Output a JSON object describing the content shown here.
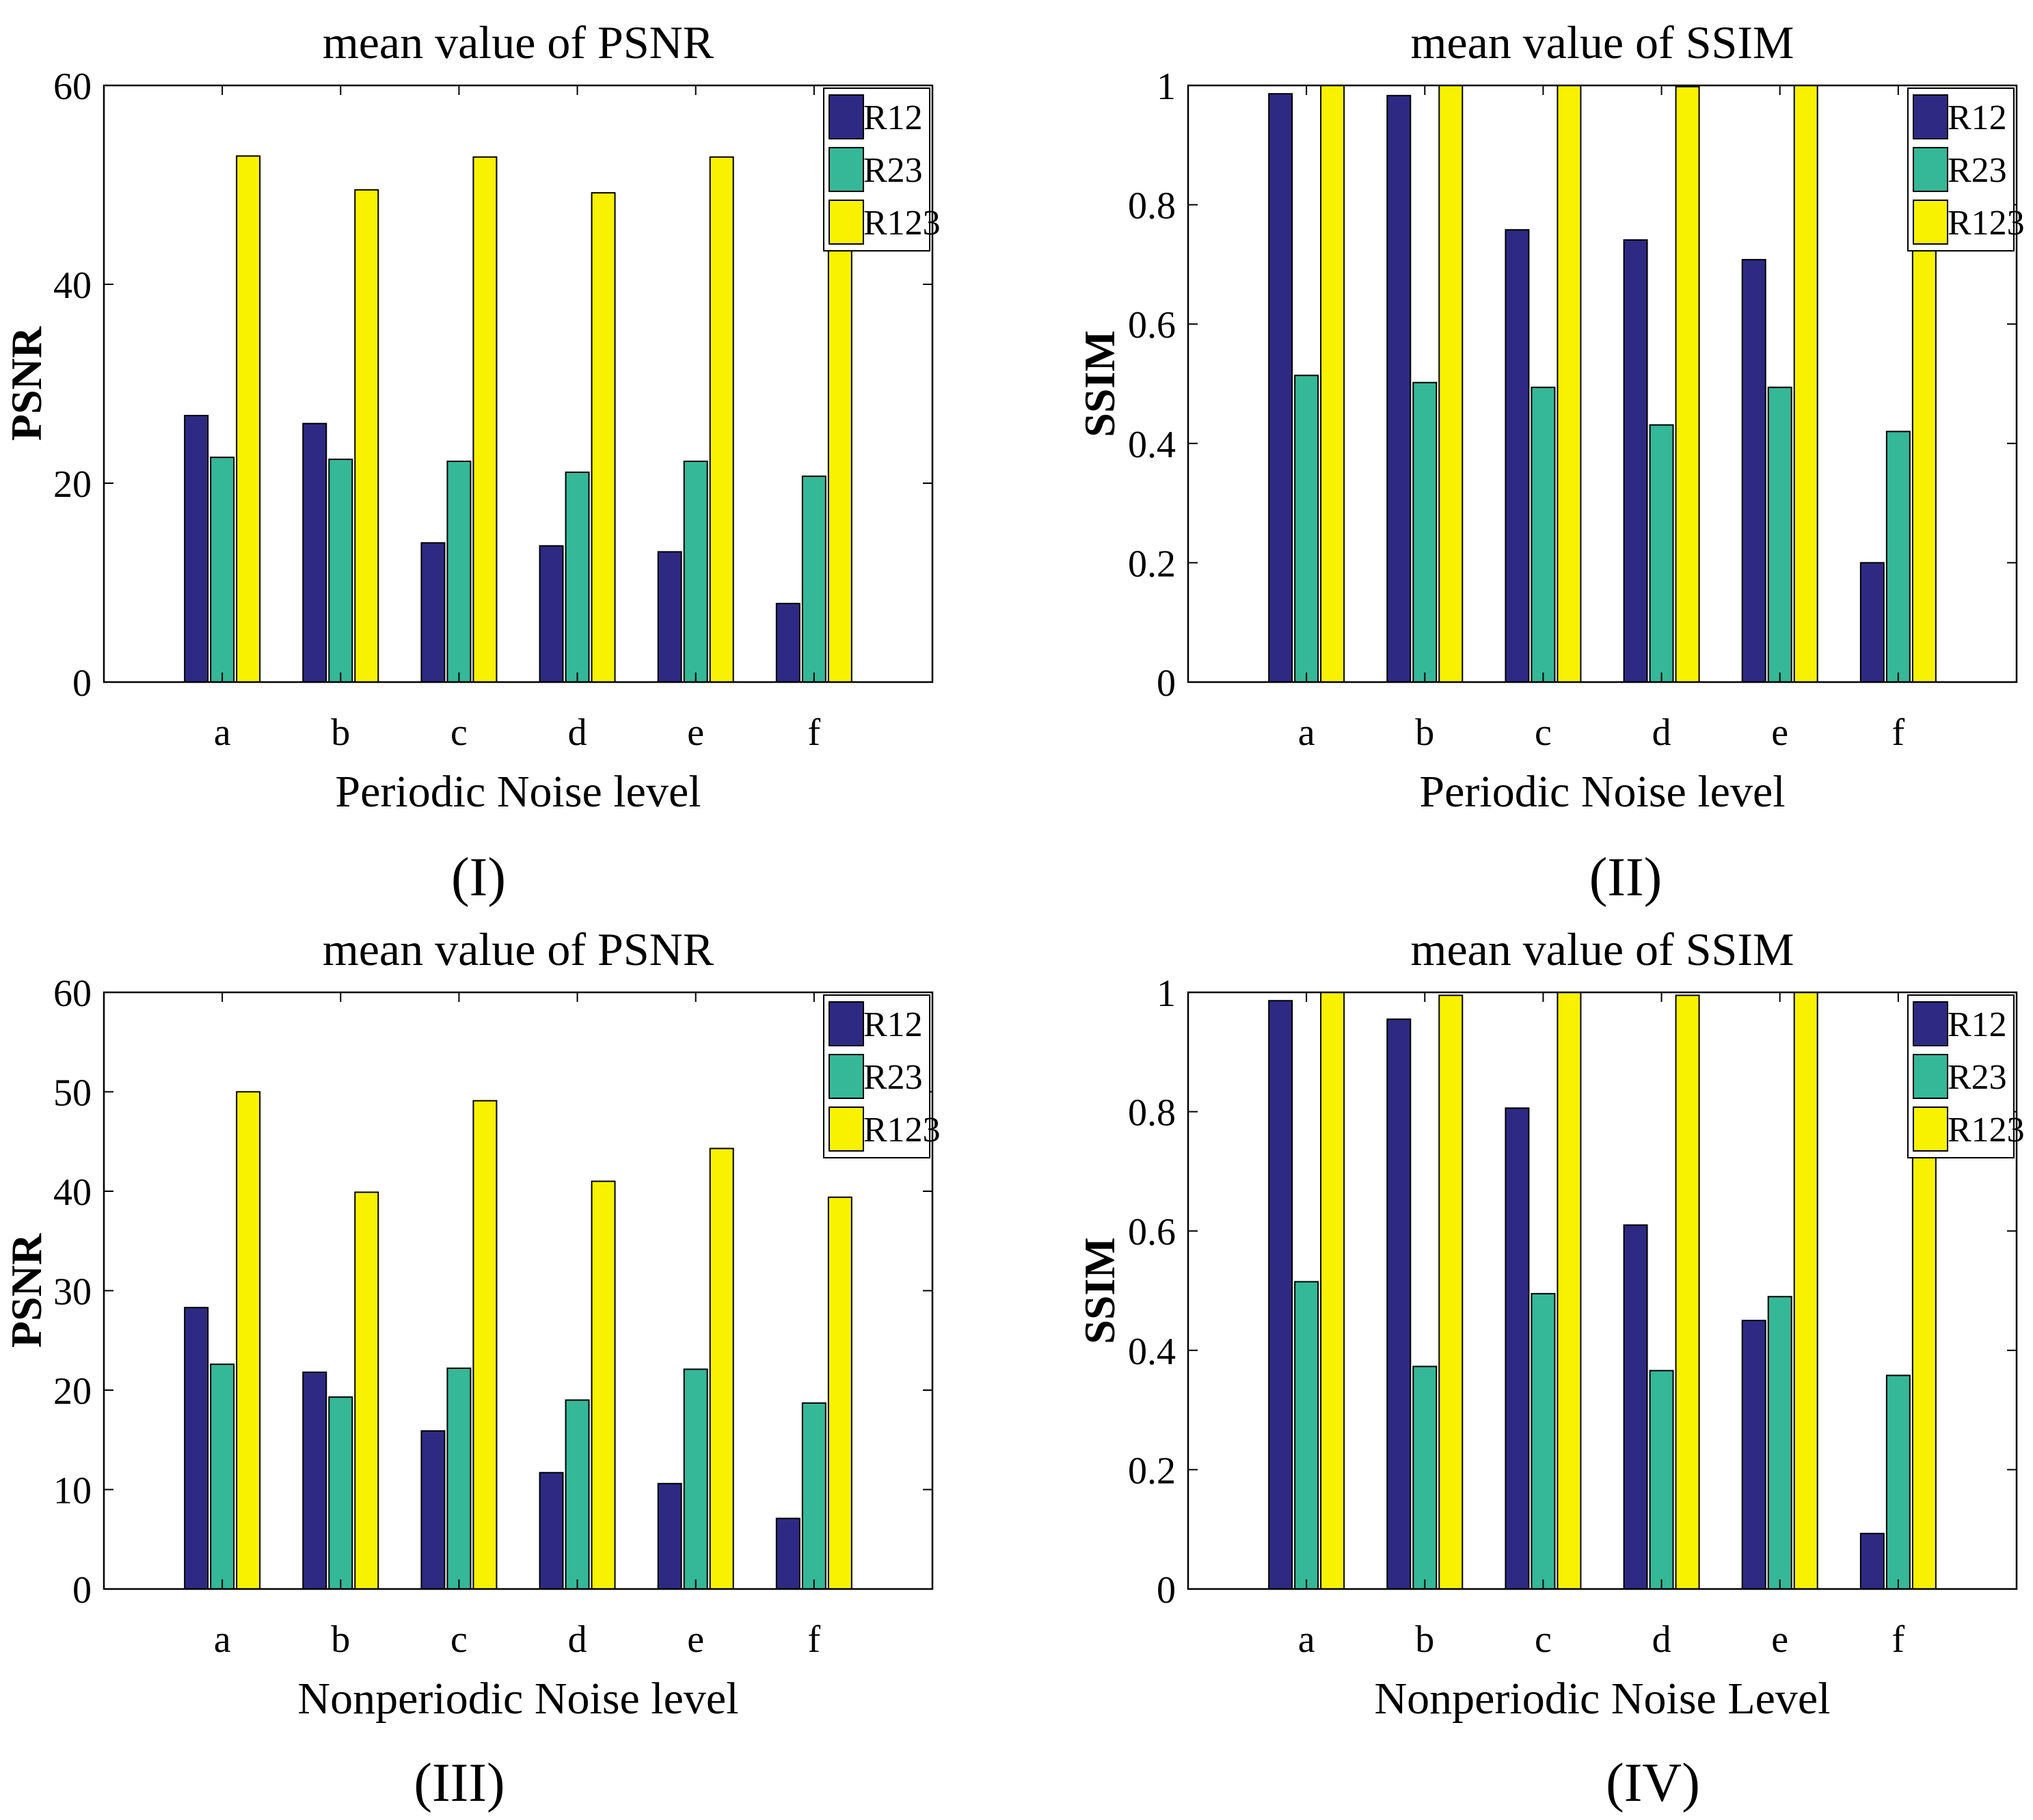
{
  "chart_data": [
    {
      "type": "bar",
      "panel_label": "(I)",
      "title": "mean value of PSNR",
      "xlabel": "Periodic Noise level",
      "ylabel": "PSNR",
      "categories": [
        "a",
        "b",
        "c",
        "d",
        "e",
        "f"
      ],
      "ylim": [
        0,
        60
      ],
      "yticks": [
        0,
        20,
        40,
        60
      ],
      "ytick_labels": [
        "0",
        "20",
        "40",
        "60"
      ],
      "legend_position": "top-right",
      "series": [
        {
          "name": "R12",
          "values": [
            26.8,
            26.0,
            14.0,
            13.7,
            13.1,
            7.9
          ]
        },
        {
          "name": "R23",
          "values": [
            22.6,
            22.4,
            22.2,
            21.1,
            22.2,
            20.7
          ]
        },
        {
          "name": "R123",
          "values": [
            52.9,
            49.5,
            52.8,
            49.2,
            52.8,
            47.5
          ]
        }
      ]
    },
    {
      "type": "bar",
      "panel_label": "(II)",
      "title": "mean value of SSIM",
      "xlabel": "Periodic Noise level",
      "ylabel": "SSIM",
      "categories": [
        "a",
        "b",
        "c",
        "d",
        "e",
        "f"
      ],
      "ylim": [
        0,
        1
      ],
      "yticks": [
        0,
        0.2,
        0.4,
        0.6,
        0.8,
        1
      ],
      "ytick_labels": [
        "0",
        "0.2",
        "0.4",
        "0.6",
        "0.8",
        "1"
      ],
      "legend_position": "top-right",
      "series": [
        {
          "name": "R12",
          "values": [
            0.986,
            0.983,
            0.758,
            0.741,
            0.708,
            0.2
          ]
        },
        {
          "name": "R23",
          "values": [
            0.514,
            0.502,
            0.494,
            0.431,
            0.494,
            0.42
          ]
        },
        {
          "name": "R123",
          "values": [
            1.0,
            1.0,
            1.0,
            0.998,
            1.0,
            0.8
          ]
        }
      ]
    },
    {
      "type": "bar",
      "panel_label": "(III)",
      "title": "mean value of PSNR",
      "xlabel": "Nonperiodic Noise level",
      "ylabel": "PSNR",
      "categories": [
        "a",
        "b",
        "c",
        "d",
        "e",
        "f"
      ],
      "ylim": [
        0,
        60
      ],
      "yticks": [
        0,
        10,
        20,
        30,
        40,
        50,
        60
      ],
      "ytick_labels": [
        "0",
        "10",
        "20",
        "30",
        "40",
        "50",
        "60"
      ],
      "legend_position": "top-right",
      "series": [
        {
          "name": "R12",
          "values": [
            28.3,
            21.8,
            15.9,
            11.7,
            10.6,
            7.1
          ]
        },
        {
          "name": "R23",
          "values": [
            22.6,
            19.3,
            22.2,
            19.0,
            22.1,
            18.7
          ]
        },
        {
          "name": "R123",
          "values": [
            50.0,
            39.9,
            49.1,
            41.0,
            44.3,
            39.4
          ]
        }
      ]
    },
    {
      "type": "bar",
      "panel_label": "(IV)",
      "title": "mean value of SSIM",
      "xlabel": "Nonperiodic Noise Level",
      "ylabel": "SSIM",
      "categories": [
        "a",
        "b",
        "c",
        "d",
        "e",
        "f"
      ],
      "ylim": [
        0,
        1
      ],
      "yticks": [
        0,
        0.2,
        0.4,
        0.6,
        0.8,
        1
      ],
      "ytick_labels": [
        "0",
        "0.2",
        "0.4",
        "0.6",
        "0.8",
        "1"
      ],
      "legend_position": "top-right",
      "series": [
        {
          "name": "R12",
          "values": [
            0.986,
            0.955,
            0.806,
            0.61,
            0.45,
            0.093
          ]
        },
        {
          "name": "R23",
          "values": [
            0.515,
            0.373,
            0.495,
            0.366,
            0.49,
            0.358
          ]
        },
        {
          "name": "R123",
          "values": [
            1.0,
            0.995,
            1.0,
            0.995,
            1.0,
            0.8
          ]
        }
      ]
    }
  ],
  "colors": {
    "R12": "#2e2a83",
    "R23": "#35b897",
    "R123": "#f8f200",
    "axis": "#000000",
    "background": "#ffffff"
  }
}
